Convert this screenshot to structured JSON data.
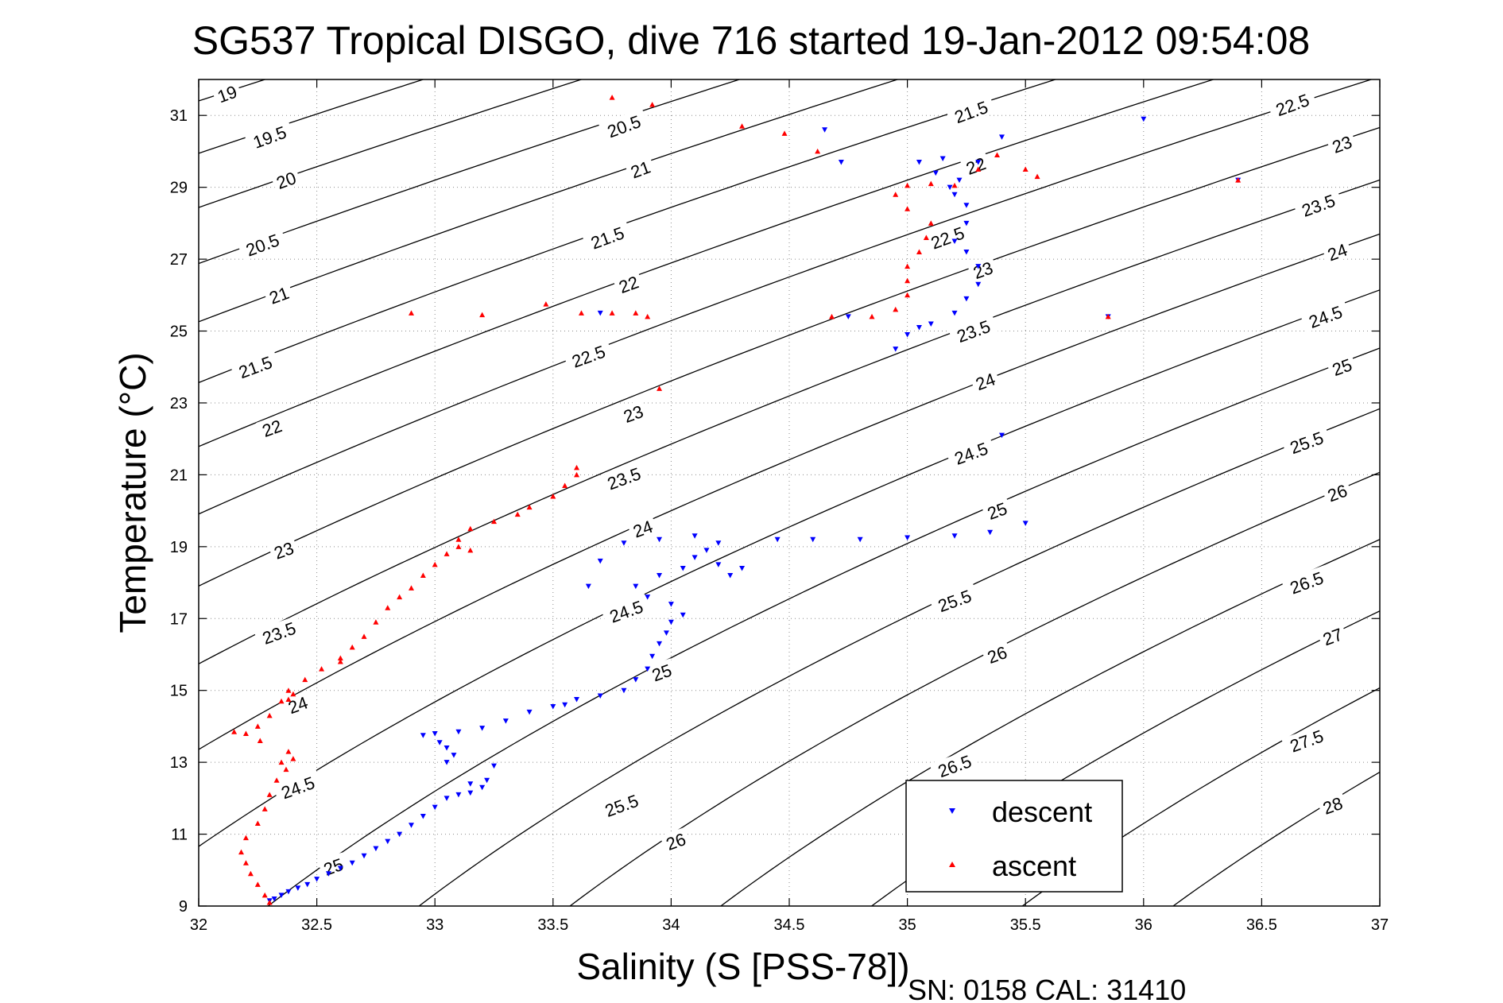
{
  "window": {
    "title": "SG537 Tropical DISGO, dive 716 started 19-Jan-2012 09:54:08",
    "footer": "SN: 0158  CAL: 31410"
  },
  "chart_data": {
    "type": "scatter",
    "title": "SG537 Tropical DISGO, dive 716 started 19-Jan-2012 09:54:08",
    "xlabel": "Salinity (S [PSS-78])",
    "ylabel": "Temperature (°C)",
    "xlim": [
      32,
      37
    ],
    "ylim": [
      9,
      32
    ],
    "xticks": [
      32,
      32.5,
      33,
      33.5,
      34,
      34.5,
      35,
      35.5,
      36,
      36.5,
      37
    ],
    "xtick_labels": [
      "32",
      "32.5",
      "33",
      "33.5",
      "34",
      "34.5",
      "35",
      "35.5",
      "36",
      "36.5",
      "37"
    ],
    "yticks": [
      9,
      11,
      13,
      15,
      17,
      19,
      21,
      23,
      25,
      27,
      29,
      31
    ],
    "ytick_labels": [
      "9",
      "11",
      "13",
      "15",
      "17",
      "19",
      "21",
      "23",
      "25",
      "27",
      "29",
      "31"
    ],
    "grid": true,
    "legend": {
      "position": "bottom-right",
      "entries": [
        {
          "label": "descent",
          "color": "#0000ff",
          "marker": "triangle-down"
        },
        {
          "label": "ascent",
          "color": "#ff0000",
          "marker": "triangle-up"
        }
      ]
    },
    "contours": {
      "type": "density (sigma-theta)",
      "color": "#000000",
      "levels": [
        19,
        19.5,
        20,
        20.5,
        21,
        21.5,
        22,
        22.5,
        23,
        23.5,
        24,
        24.5,
        25,
        25.5,
        26,
        26.5,
        27,
        27.5,
        28
      ],
      "labels": [
        {
          "text": "19",
          "s": 32.12,
          "t": 31.6
        },
        {
          "text": "19.5",
          "s": 32.3,
          "t": 30.4
        },
        {
          "text": "20",
          "s": 32.37,
          "t": 29.2
        },
        {
          "text": "20.5",
          "s": 32.27,
          "t": 27.4
        },
        {
          "text": "21",
          "s": 32.34,
          "t": 26.0
        },
        {
          "text": "21.5",
          "s": 32.24,
          "t": 24.0
        },
        {
          "text": "22",
          "s": 32.31,
          "t": 22.3
        },
        {
          "text": "23",
          "s": 32.36,
          "t": 18.9
        },
        {
          "text": "23.5",
          "s": 32.34,
          "t": 16.6
        },
        {
          "text": "24",
          "s": 32.42,
          "t": 14.6
        },
        {
          "text": "24.5",
          "s": 32.42,
          "t": 12.3
        },
        {
          "text": "25",
          "s": 32.57,
          "t": 10.1
        },
        {
          "text": "20.5",
          "s": 33.8,
          "t": 30.7
        },
        {
          "text": "21",
          "s": 33.87,
          "t": 29.5
        },
        {
          "text": "21.5",
          "s": 33.73,
          "t": 27.6
        },
        {
          "text": "22",
          "s": 33.82,
          "t": 26.3
        },
        {
          "text": "22.5",
          "s": 33.65,
          "t": 24.3
        },
        {
          "text": "23",
          "s": 33.84,
          "t": 22.7
        },
        {
          "text": "23.5",
          "s": 33.8,
          "t": 20.9
        },
        {
          "text": "24",
          "s": 33.88,
          "t": 19.5
        },
        {
          "text": "24.5",
          "s": 33.81,
          "t": 17.2
        },
        {
          "text": "25",
          "s": 33.96,
          "t": 15.5
        },
        {
          "text": "25.5",
          "s": 33.79,
          "t": 11.8
        },
        {
          "text": "26",
          "s": 34.02,
          "t": 10.8
        },
        {
          "text": "21.5",
          "s": 35.27,
          "t": 31.1
        },
        {
          "text": "22",
          "s": 35.29,
          "t": 29.6
        },
        {
          "text": "22.5",
          "s": 35.17,
          "t": 27.6
        },
        {
          "text": "23",
          "s": 35.32,
          "t": 26.7
        },
        {
          "text": "23.5",
          "s": 35.28,
          "t": 25.0
        },
        {
          "text": "24",
          "s": 35.33,
          "t": 23.6
        },
        {
          "text": "24.5",
          "s": 35.27,
          "t": 21.6
        },
        {
          "text": "25",
          "s": 35.38,
          "t": 20.0
        },
        {
          "text": "25.5",
          "s": 35.2,
          "t": 17.5
        },
        {
          "text": "26",
          "s": 35.38,
          "t": 16.0
        },
        {
          "text": "26.5",
          "s": 35.2,
          "t": 12.9
        },
        {
          "text": "22.5",
          "s": 36.63,
          "t": 31.3
        },
        {
          "text": "23",
          "s": 36.84,
          "t": 30.2
        },
        {
          "text": "23.5",
          "s": 36.74,
          "t": 28.5
        },
        {
          "text": "24",
          "s": 36.82,
          "t": 27.2
        },
        {
          "text": "24.5",
          "s": 36.77,
          "t": 25.4
        },
        {
          "text": "25",
          "s": 36.84,
          "t": 24.0
        },
        {
          "text": "25.5",
          "s": 36.69,
          "t": 21.9
        },
        {
          "text": "26",
          "s": 36.82,
          "t": 20.5
        },
        {
          "text": "26.5",
          "s": 36.69,
          "t": 18.0
        },
        {
          "text": "27",
          "s": 36.8,
          "t": 16.5
        },
        {
          "text": "27.5",
          "s": 36.69,
          "t": 13.6
        },
        {
          "text": "28",
          "s": 36.8,
          "t": 11.8
        }
      ]
    },
    "series": [
      {
        "name": "descent",
        "color": "#0000ff",
        "marker": "triangle-down",
        "points": [
          [
            32.3,
            9.15
          ],
          [
            32.32,
            9.2
          ],
          [
            32.35,
            9.3
          ],
          [
            32.38,
            9.4
          ],
          [
            32.42,
            9.5
          ],
          [
            32.46,
            9.6
          ],
          [
            32.5,
            9.75
          ],
          [
            32.55,
            9.9
          ],
          [
            32.6,
            10.05
          ],
          [
            32.65,
            10.2
          ],
          [
            32.7,
            10.4
          ],
          [
            32.75,
            10.6
          ],
          [
            32.8,
            10.8
          ],
          [
            32.85,
            11.0
          ],
          [
            32.9,
            11.25
          ],
          [
            32.95,
            11.5
          ],
          [
            33.0,
            11.75
          ],
          [
            33.05,
            12.0
          ],
          [
            33.1,
            12.1
          ],
          [
            33.15,
            12.15
          ],
          [
            33.2,
            12.3
          ],
          [
            33.22,
            12.5
          ],
          [
            33.25,
            12.9
          ],
          [
            33.15,
            12.4
          ],
          [
            33.05,
            13.0
          ],
          [
            33.08,
            13.2
          ],
          [
            33.05,
            13.4
          ],
          [
            33.02,
            13.55
          ],
          [
            32.95,
            13.75
          ],
          [
            33.0,
            13.8
          ],
          [
            33.1,
            13.85
          ],
          [
            33.2,
            13.95
          ],
          [
            33.3,
            14.15
          ],
          [
            33.4,
            14.4
          ],
          [
            33.5,
            14.55
          ],
          [
            33.55,
            14.6
          ],
          [
            33.6,
            14.75
          ],
          [
            33.7,
            14.85
          ],
          [
            33.8,
            15.0
          ],
          [
            33.85,
            15.3
          ],
          [
            33.9,
            15.6
          ],
          [
            33.92,
            15.95
          ],
          [
            33.95,
            16.3
          ],
          [
            33.98,
            16.6
          ],
          [
            34.0,
            16.9
          ],
          [
            34.05,
            17.1
          ],
          [
            34.0,
            17.4
          ],
          [
            33.9,
            17.6
          ],
          [
            33.85,
            17.9
          ],
          [
            33.95,
            18.2
          ],
          [
            34.05,
            18.4
          ],
          [
            34.1,
            18.7
          ],
          [
            34.15,
            18.9
          ],
          [
            34.2,
            18.5
          ],
          [
            34.25,
            18.2
          ],
          [
            34.3,
            18.4
          ],
          [
            34.2,
            19.1
          ],
          [
            34.1,
            19.3
          ],
          [
            33.95,
            19.2
          ],
          [
            33.8,
            19.1
          ],
          [
            33.7,
            18.6
          ],
          [
            33.65,
            17.9
          ],
          [
            34.45,
            19.2
          ],
          [
            34.6,
            19.2
          ],
          [
            34.8,
            19.2
          ],
          [
            35.0,
            19.25
          ],
          [
            35.2,
            19.3
          ],
          [
            35.35,
            19.4
          ],
          [
            35.5,
            19.65
          ],
          [
            35.4,
            22.1
          ],
          [
            34.95,
            24.5
          ],
          [
            35.0,
            24.9
          ],
          [
            35.05,
            25.1
          ],
          [
            35.1,
            25.2
          ],
          [
            35.2,
            25.5
          ],
          [
            35.25,
            25.9
          ],
          [
            35.3,
            26.3
          ],
          [
            35.3,
            26.8
          ],
          [
            35.25,
            27.2
          ],
          [
            35.2,
            27.5
          ],
          [
            35.25,
            28.0
          ],
          [
            35.25,
            28.5
          ],
          [
            35.2,
            28.8
          ],
          [
            35.18,
            29.0
          ],
          [
            35.22,
            29.2
          ],
          [
            35.12,
            29.4
          ],
          [
            35.05,
            29.7
          ],
          [
            35.15,
            29.8
          ],
          [
            35.3,
            29.7
          ],
          [
            35.4,
            30.4
          ],
          [
            34.65,
            30.6
          ],
          [
            34.72,
            29.7
          ],
          [
            34.75,
            25.4
          ],
          [
            36.4,
            29.2
          ],
          [
            36.0,
            30.9
          ],
          [
            35.85,
            25.4
          ],
          [
            33.7,
            25.5
          ]
        ]
      },
      {
        "name": "ascent",
        "color": "#ff0000",
        "marker": "triangle-up",
        "points": [
          [
            32.3,
            9.1
          ],
          [
            32.28,
            9.3
          ],
          [
            32.25,
            9.6
          ],
          [
            32.22,
            9.9
          ],
          [
            32.2,
            10.2
          ],
          [
            32.18,
            10.5
          ],
          [
            32.2,
            10.9
          ],
          [
            32.25,
            11.3
          ],
          [
            32.28,
            11.7
          ],
          [
            32.3,
            12.1
          ],
          [
            32.33,
            12.5
          ],
          [
            32.37,
            12.8
          ],
          [
            32.4,
            13.1
          ],
          [
            32.38,
            13.3
          ],
          [
            32.35,
            13.0
          ],
          [
            32.26,
            13.6
          ],
          [
            32.2,
            13.8
          ],
          [
            32.15,
            13.85
          ],
          [
            32.25,
            14.0
          ],
          [
            32.3,
            14.3
          ],
          [
            32.35,
            14.7
          ],
          [
            32.38,
            15.0
          ],
          [
            32.45,
            15.3
          ],
          [
            32.52,
            15.6
          ],
          [
            32.6,
            15.9
          ],
          [
            32.65,
            16.2
          ],
          [
            32.7,
            16.5
          ],
          [
            32.75,
            16.9
          ],
          [
            32.8,
            17.3
          ],
          [
            32.85,
            17.6
          ],
          [
            32.9,
            17.85
          ],
          [
            32.95,
            18.2
          ],
          [
            33.0,
            18.5
          ],
          [
            33.05,
            18.8
          ],
          [
            33.1,
            19.2
          ],
          [
            33.15,
            19.5
          ],
          [
            33.25,
            19.7
          ],
          [
            33.35,
            19.9
          ],
          [
            33.4,
            20.1
          ],
          [
            33.5,
            20.4
          ],
          [
            33.55,
            20.7
          ],
          [
            33.6,
            21.0
          ],
          [
            33.6,
            21.2
          ],
          [
            33.15,
            18.9
          ],
          [
            33.1,
            19.0
          ],
          [
            32.6,
            15.8
          ],
          [
            32.4,
            14.9
          ],
          [
            32.38,
            14.75
          ],
          [
            33.62,
            25.5
          ],
          [
            33.75,
            25.5
          ],
          [
            33.85,
            25.5
          ],
          [
            33.9,
            25.4
          ],
          [
            33.47,
            25.75
          ],
          [
            33.2,
            25.45
          ],
          [
            32.9,
            25.5
          ],
          [
            33.95,
            23.4
          ],
          [
            33.75,
            31.5
          ],
          [
            33.92,
            31.3
          ],
          [
            34.3,
            30.7
          ],
          [
            34.48,
            30.5
          ],
          [
            34.62,
            30.0
          ],
          [
            34.68,
            25.4
          ],
          [
            34.85,
            25.4
          ],
          [
            34.95,
            25.6
          ],
          [
            35.0,
            26.0
          ],
          [
            35.0,
            26.4
          ],
          [
            35.0,
            26.8
          ],
          [
            35.05,
            27.2
          ],
          [
            35.08,
            27.6
          ],
          [
            35.1,
            28.0
          ],
          [
            35.0,
            28.4
          ],
          [
            34.95,
            28.8
          ],
          [
            35.0,
            29.05
          ],
          [
            35.1,
            29.1
          ],
          [
            35.2,
            29.05
          ],
          [
            35.3,
            29.5
          ],
          [
            35.38,
            29.9
          ],
          [
            35.5,
            29.5
          ],
          [
            35.55,
            29.3
          ],
          [
            35.85,
            25.4
          ],
          [
            36.4,
            29.2
          ]
        ]
      }
    ]
  }
}
